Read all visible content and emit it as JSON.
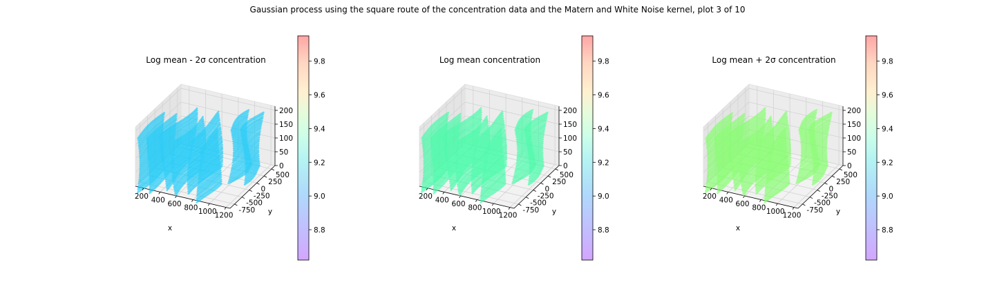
{
  "figure": {
    "suptitle": "Gaussian process using the square route of the concentration data and the Matern and White Noise kernel, plot 3 of 10"
  },
  "chart_data": [
    {
      "type": "scatter",
      "projection": "3d",
      "title": "Log mean - 2σ concentration",
      "xlabel": "x",
      "ylabel": "y",
      "zlabel": "",
      "x_ticks": [
        200,
        400,
        600,
        800,
        1000,
        1200
      ],
      "y_ticks": [
        -750,
        -500,
        -250,
        0,
        250,
        500
      ],
      "z_ticks": [
        0,
        50,
        100,
        150,
        200
      ],
      "point_color": "#12c8f8",
      "colorbar": {
        "ticks": [
          8.8,
          9.0,
          9.2,
          9.4,
          9.6,
          9.8
        ],
        "range": [
          8.62,
          9.95
        ],
        "colormap": "rainbow",
        "alpha": 0.35
      }
    },
    {
      "type": "scatter",
      "projection": "3d",
      "title": "Log mean concentration",
      "xlabel": "x",
      "ylabel": "y",
      "zlabel": "",
      "x_ticks": [
        200,
        400,
        600,
        800,
        1000,
        1200
      ],
      "y_ticks": [
        -750,
        -500,
        -250,
        0,
        250,
        500
      ],
      "z_ticks": [
        0,
        50,
        100,
        150,
        200
      ],
      "point_color": "#3cfca4",
      "colorbar": {
        "ticks": [
          8.8,
          9.0,
          9.2,
          9.4,
          9.6,
          9.8
        ],
        "range": [
          8.62,
          9.95
        ],
        "colormap": "rainbow",
        "alpha": 0.35
      }
    },
    {
      "type": "scatter",
      "projection": "3d",
      "title": "Log mean + 2σ concentration",
      "xlabel": "x",
      "ylabel": "y",
      "zlabel": "",
      "x_ticks": [
        200,
        400,
        600,
        800,
        1000,
        1200
      ],
      "y_ticks": [
        -750,
        -500,
        -250,
        0,
        250,
        500
      ],
      "z_ticks": [
        0,
        50,
        100,
        150,
        200
      ],
      "point_color": "#80ff68",
      "colorbar": {
        "ticks": [
          8.8,
          9.0,
          9.2,
          9.4,
          9.6,
          9.8
        ],
        "range": [
          8.62,
          9.95
        ],
        "colormap": "rainbow",
        "alpha": 0.35
      }
    }
  ]
}
